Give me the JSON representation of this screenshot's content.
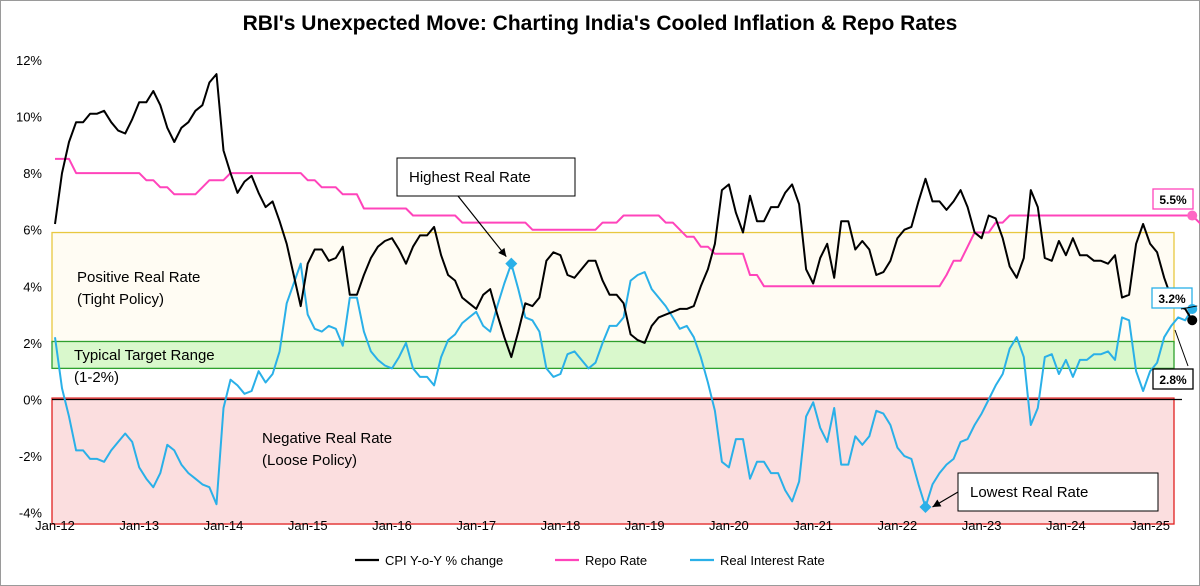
{
  "chart_data": {
    "type": "line",
    "title": "RBI's Unexpected Move: Charting India's Cooled Inflation & Repo Rates",
    "xlabel": "",
    "ylabel": "",
    "ylim": [
      -4,
      12
    ],
    "y_ticks": [
      "12%",
      "10%",
      "8%",
      "6%",
      "4%",
      "2%",
      "0%",
      "-2%",
      "-4%"
    ],
    "y_tick_values": [
      12,
      10,
      8,
      6,
      4,
      2,
      0,
      -2,
      -4
    ],
    "x_ticks": [
      "Jan-12",
      "Jan-13",
      "Jan-14",
      "Jan-15",
      "Jan-16",
      "Jan-17",
      "Jan-18",
      "Jan-19",
      "Jan-20",
      "Jan-21",
      "Jan-22",
      "Jan-23",
      "Jan-24",
      "Jan-25"
    ],
    "grid": false,
    "legend_position": "bottom",
    "x_start": "Jan-12",
    "x_step": "1 month",
    "series": [
      {
        "name": "CPI Y-o-Y % change",
        "color": "#000000",
        "values": [
          6.2,
          8.0,
          9.1,
          9.8,
          9.8,
          10.1,
          10.1,
          10.2,
          9.8,
          9.5,
          9.4,
          9.9,
          10.5,
          10.5,
          10.9,
          10.4,
          9.6,
          9.1,
          9.6,
          9.8,
          10.2,
          10.4,
          11.2,
          11.5,
          8.8,
          8.0,
          7.3,
          7.7,
          7.9,
          7.3,
          6.8,
          7.0,
          6.3,
          5.5,
          4.4,
          3.3,
          4.8,
          5.3,
          5.3,
          4.9,
          5.0,
          5.4,
          3.7,
          3.7,
          4.4,
          5.0,
          5.4,
          5.6,
          5.7,
          5.3,
          4.8,
          5.4,
          5.8,
          5.8,
          6.1,
          5.1,
          4.4,
          4.2,
          3.6,
          3.4,
          3.2,
          3.7,
          3.9,
          3.0,
          2.2,
          1.5,
          2.4,
          3.4,
          3.3,
          3.6,
          4.9,
          5.2,
          5.1,
          4.4,
          4.3,
          4.6,
          4.9,
          4.9,
          4.2,
          3.7,
          3.7,
          3.4,
          2.3,
          2.1,
          2.0,
          2.6,
          2.9,
          3.0,
          3.1,
          3.2,
          3.2,
          3.3,
          4.0,
          4.6,
          5.5,
          7.4,
          7.6,
          6.6,
          5.9,
          7.2,
          6.3,
          6.3,
          6.8,
          6.8,
          7.3,
          7.6,
          6.9,
          4.6,
          4.1,
          5.0,
          5.5,
          4.3,
          6.3,
          6.3,
          5.3,
          5.6,
          5.3,
          4.4,
          4.5,
          4.9,
          5.7,
          6.0,
          6.1,
          7.0,
          7.8,
          7.0,
          7.0,
          6.7,
          7.0,
          7.4,
          6.8,
          5.9,
          5.7,
          6.5,
          6.4,
          5.7,
          4.7,
          4.3,
          5.0,
          7.4,
          6.8,
          5.0,
          4.9,
          5.6,
          5.1,
          5.7,
          5.1,
          5.1,
          4.9,
          4.9,
          4.8,
          5.1,
          3.6,
          3.7,
          5.5,
          6.2,
          5.5,
          5.2,
          4.3,
          3.6,
          3.3,
          3.2,
          2.8
        ]
      },
      {
        "name": "Repo Rate",
        "color": "#ff44bb",
        "values": [
          8.5,
          8.5,
          8.5,
          8.0,
          8.0,
          8.0,
          8.0,
          8.0,
          8.0,
          8.0,
          8.0,
          8.0,
          8.0,
          7.75,
          7.75,
          7.5,
          7.5,
          7.25,
          7.25,
          7.25,
          7.25,
          7.5,
          7.75,
          7.75,
          7.75,
          8.0,
          8.0,
          8.0,
          8.0,
          8.0,
          8.0,
          8.0,
          8.0,
          8.0,
          8.0,
          8.0,
          7.75,
          7.75,
          7.5,
          7.5,
          7.5,
          7.25,
          7.25,
          7.25,
          6.75,
          6.75,
          6.75,
          6.75,
          6.75,
          6.75,
          6.75,
          6.5,
          6.5,
          6.5,
          6.5,
          6.5,
          6.5,
          6.5,
          6.25,
          6.25,
          6.25,
          6.25,
          6.25,
          6.25,
          6.25,
          6.25,
          6.25,
          6.25,
          6.0,
          6.0,
          6.0,
          6.0,
          6.0,
          6.0,
          6.0,
          6.0,
          6.0,
          6.0,
          6.25,
          6.25,
          6.25,
          6.5,
          6.5,
          6.5,
          6.5,
          6.5,
          6.5,
          6.25,
          6.25,
          6.0,
          5.75,
          5.75,
          5.4,
          5.4,
          5.15,
          5.15,
          5.15,
          5.15,
          5.15,
          4.4,
          4.4,
          4.0,
          4.0,
          4.0,
          4.0,
          4.0,
          4.0,
          4.0,
          4.0,
          4.0,
          4.0,
          4.0,
          4.0,
          4.0,
          4.0,
          4.0,
          4.0,
          4.0,
          4.0,
          4.0,
          4.0,
          4.0,
          4.0,
          4.0,
          4.0,
          4.0,
          4.0,
          4.4,
          4.9,
          4.9,
          5.4,
          5.9,
          5.9,
          5.9,
          6.25,
          6.25,
          6.5,
          6.5,
          6.5,
          6.5,
          6.5,
          6.5,
          6.5,
          6.5,
          6.5,
          6.5,
          6.5,
          6.5,
          6.5,
          6.5,
          6.5,
          6.5,
          6.5,
          6.5,
          6.5,
          6.5,
          6.5,
          6.5,
          6.5,
          6.5,
          6.5,
          6.5,
          6.5,
          6.25,
          6.0,
          6.0,
          5.5
        ]
      },
      {
        "name": "Real Interest Rate",
        "color": "#2ab0e8",
        "values": [
          2.2,
          0.4,
          -0.6,
          -1.8,
          -1.8,
          -2.1,
          -2.1,
          -2.2,
          -1.8,
          -1.5,
          -1.2,
          -1.5,
          -2.4,
          -2.8,
          -3.1,
          -2.6,
          -1.6,
          -1.8,
          -2.3,
          -2.6,
          -2.8,
          -3.0,
          -3.1,
          -3.7,
          -0.3,
          0.7,
          0.5,
          0.2,
          0.3,
          1.0,
          0.6,
          0.9,
          1.7,
          3.4,
          4.1,
          4.8,
          3.0,
          2.5,
          2.4,
          2.6,
          2.5,
          1.9,
          3.6,
          3.6,
          2.4,
          1.7,
          1.4,
          1.2,
          1.1,
          1.5,
          2.0,
          1.1,
          0.8,
          0.8,
          0.5,
          1.5,
          2.1,
          2.3,
          2.7,
          2.9,
          3.1,
          2.6,
          2.4,
          3.3,
          4.1,
          4.8,
          3.9,
          2.9,
          2.8,
          2.4,
          1.1,
          0.8,
          0.9,
          1.6,
          1.7,
          1.4,
          1.1,
          1.3,
          2.0,
          2.6,
          2.6,
          2.9,
          4.2,
          4.4,
          4.5,
          3.9,
          3.6,
          3.3,
          2.9,
          2.5,
          2.6,
          2.2,
          1.5,
          0.6,
          -0.4,
          -2.2,
          -2.4,
          -1.4,
          -1.4,
          -2.8,
          -2.2,
          -2.2,
          -2.6,
          -2.6,
          -3.2,
          -3.6,
          -2.9,
          -0.6,
          -0.1,
          -1.0,
          -1.5,
          -0.3,
          -2.3,
          -2.3,
          -1.3,
          -1.6,
          -1.3,
          -0.4,
          -0.5,
          -0.9,
          -1.7,
          -2.0,
          -2.1,
          -3.0,
          -3.8,
          -3.0,
          -2.6,
          -2.3,
          -2.1,
          -1.5,
          -1.4,
          -0.9,
          -0.5,
          0.0,
          0.5,
          0.9,
          1.8,
          2.2,
          1.5,
          -0.9,
          -0.3,
          1.5,
          1.6,
          0.9,
          1.4,
          0.8,
          1.4,
          1.4,
          1.6,
          1.6,
          1.7,
          1.4,
          2.9,
          2.8,
          1.0,
          0.3,
          1.0,
          1.3,
          2.2,
          2.6,
          2.9,
          2.8,
          3.2
        ]
      }
    ],
    "zones": [
      {
        "label1": "Positive Real Rate",
        "label2": "(Tight Policy)",
        "from": 2,
        "to": 5.9,
        "fill": "#fffcf3",
        "stroke": "#e8c840"
      },
      {
        "label1": "Typical Target Range",
        "label2": "(1-2%)",
        "from": 1.1,
        "to": 2.05,
        "fill": "#d9f8cc",
        "stroke": "#2ea02e"
      },
      {
        "label1": "Negative Real Rate",
        "label2": "(Loose Policy)",
        "from": -4.4,
        "to": 0.05,
        "fill": "#fbdedf",
        "stroke": "#e02020"
      }
    ],
    "annotations": [
      {
        "text": "Highest Real Rate",
        "month": 65,
        "value": 4.8
      },
      {
        "text": "Lowest Real Rate",
        "month": 124,
        "value": -3.8
      }
    ],
    "end_labels": {
      "repo": "5.5%",
      "real": "3.2%",
      "cpi": "2.8%"
    }
  }
}
